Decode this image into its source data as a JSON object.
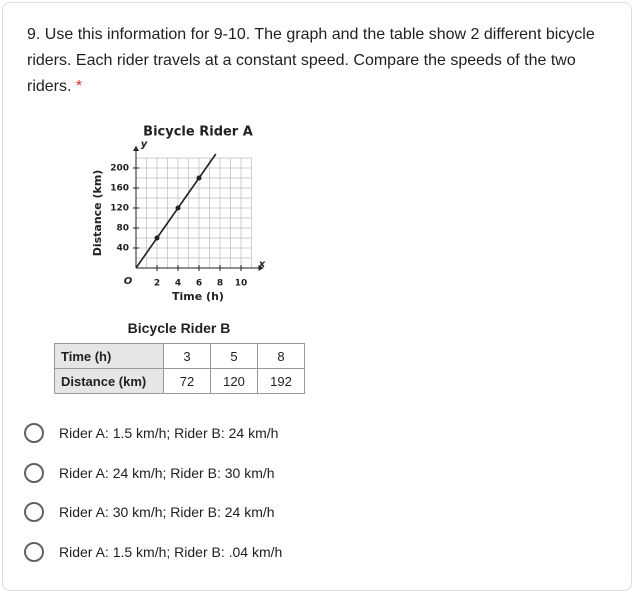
{
  "question": {
    "text": "9. Use this information for 9-10. The graph and the table show 2 different bicycle riders. Each rider travels at a constant speed. Compare the speeds of the two riders.",
    "required": "*"
  },
  "chart_data": {
    "type": "line",
    "title": "Bicycle Rider A",
    "x_label": "Time (h)",
    "y_label": "Distance (km)",
    "origin_label": "O",
    "x_axis_name": "x",
    "y_axis_name": "y",
    "x": [
      0,
      2,
      4,
      6,
      7.6
    ],
    "values": [
      0,
      60,
      120,
      180,
      228
    ],
    "color": "#222222",
    "xlim": [
      0,
      11
    ],
    "ylim": [
      0,
      220
    ],
    "xticks": [
      2,
      4,
      6,
      8,
      10
    ],
    "yticks": [
      40,
      80,
      120,
      160,
      200
    ],
    "grid": true
  },
  "table": {
    "title": "Bicycle Rider B",
    "rows": [
      [
        "Time (h)",
        3,
        5,
        8
      ],
      [
        "Distance (km)",
        72,
        120,
        192
      ]
    ]
  },
  "options": [
    "Rider A: 1.5 km/h; Rider B: 24 km/h",
    "Rider A: 24 km/h; Rider B: 30 km/h",
    "Rider A: 30 km/h; Rider B: 24 km/h",
    "Rider A: 1.5 km/h; Rider B: .04 km/h"
  ]
}
